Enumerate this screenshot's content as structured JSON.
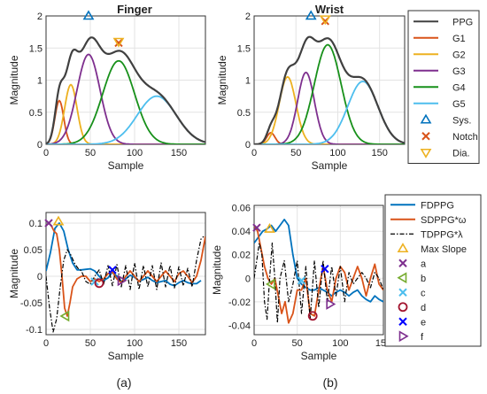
{
  "captions": [
    "(a)",
    "(b)"
  ],
  "colors": {
    "PPG": "#404040",
    "G1": "#d95319",
    "G2": "#edb120",
    "G3": "#7e2f8e",
    "G4": "#17901a",
    "G5": "#4dbeee",
    "FDPPG": "#0072bd",
    "SDPPG": "#d95319",
    "TDPPG": "#000000",
    "maxslope": "#edb120",
    "a": "#7e2f8e",
    "b": "#77ac30",
    "c": "#4dbeee",
    "d": "#a2142f",
    "e": "#0000ff",
    "f": "#7e2f8e",
    "sys": "#0072bd",
    "notch": "#d95319",
    "dia": "#edb120"
  },
  "legends": {
    "top": [
      {
        "key": "PPG",
        "label": "PPG",
        "kind": "line"
      },
      {
        "key": "G1",
        "label": "G1",
        "kind": "line"
      },
      {
        "key": "G2",
        "label": "G2",
        "kind": "line"
      },
      {
        "key": "G3",
        "label": "G3",
        "kind": "line"
      },
      {
        "key": "G4",
        "label": "G4",
        "kind": "line"
      },
      {
        "key": "G5",
        "label": "G5",
        "kind": "line"
      },
      {
        "key": "sys",
        "label": "Sys.",
        "kind": "tri-up"
      },
      {
        "key": "notch",
        "label": "Notch",
        "kind": "x"
      },
      {
        "key": "dia",
        "label": "Dia.",
        "kind": "tri-down"
      }
    ],
    "bottom": [
      {
        "key": "FDPPG",
        "label": "FDPPG",
        "kind": "line"
      },
      {
        "key": "SDPPG",
        "label": "SDPPG*ω",
        "kind": "line"
      },
      {
        "key": "TDPPG",
        "label": "TDPPG*λ",
        "kind": "dashdot"
      },
      {
        "key": "maxslope",
        "label": "Max Slope",
        "kind": "tri-up"
      },
      {
        "key": "a",
        "label": "a",
        "kind": "x"
      },
      {
        "key": "b",
        "label": "b",
        "kind": "tri-left"
      },
      {
        "key": "c",
        "label": "c",
        "kind": "x"
      },
      {
        "key": "d",
        "label": "d",
        "kind": "circle"
      },
      {
        "key": "e",
        "label": "e",
        "kind": "x"
      },
      {
        "key": "f",
        "label": "f",
        "kind": "tri-right"
      }
    ]
  },
  "chart_data": [
    {
      "id": "finger-top",
      "type": "line",
      "title": "Finger",
      "xlabel": "Sample",
      "ylabel": "Magnitude",
      "xlim": [
        0,
        180
      ],
      "ylim": [
        0,
        2
      ],
      "xticks": [
        0,
        50,
        100,
        150
      ],
      "yticks": [
        0,
        0.5,
        1,
        1.5,
        2
      ],
      "ytick_labels": [
        "0",
        "0.5",
        "1",
        "1.5",
        "2"
      ],
      "grid": true,
      "gaussians": [
        {
          "name": "G1",
          "amp": 0.68,
          "mu": 15,
          "sigma": 5
        },
        {
          "name": "G2",
          "amp": 0.93,
          "mu": 28,
          "sigma": 7
        },
        {
          "name": "G3",
          "amp": 1.4,
          "mu": 48,
          "sigma": 13
        },
        {
          "name": "G4",
          "amp": 1.3,
          "mu": 82,
          "sigma": 18
        },
        {
          "name": "G5",
          "amp": 0.75,
          "mu": 125,
          "sigma": 22
        }
      ],
      "markers": [
        {
          "key": "sys",
          "kind": "tri-up",
          "x": 48,
          "y": 2.0
        },
        {
          "key": "notch",
          "kind": "x",
          "x": 82,
          "y": 1.58
        },
        {
          "key": "dia",
          "kind": "tri-down",
          "x": 82,
          "y": 1.6
        }
      ]
    },
    {
      "id": "wrist-top",
      "type": "line",
      "title": "Wrist",
      "xlabel": "Sample",
      "ylabel": "Magnitude",
      "xlim": [
        0,
        180
      ],
      "ylim": [
        0,
        2
      ],
      "xticks": [
        0,
        50,
        100,
        150
      ],
      "yticks": [
        0,
        0.5,
        1,
        1.5,
        2
      ],
      "ytick_labels": [
        "0",
        "0.5",
        "1",
        "1.5",
        "2"
      ],
      "grid": true,
      "gaussians": [
        {
          "name": "G1",
          "amp": 0.18,
          "mu": 20,
          "sigma": 5
        },
        {
          "name": "G2",
          "amp": 1.05,
          "mu": 40,
          "sigma": 10
        },
        {
          "name": "G3",
          "amp": 1.12,
          "mu": 62,
          "sigma": 10
        },
        {
          "name": "G4",
          "amp": 1.55,
          "mu": 88,
          "sigma": 16
        },
        {
          "name": "G5",
          "amp": 0.98,
          "mu": 130,
          "sigma": 18
        }
      ],
      "markers": [
        {
          "key": "sys",
          "kind": "tri-up",
          "x": 68,
          "y": 2.0
        },
        {
          "key": "notch",
          "kind": "x",
          "x": 85,
          "y": 1.92
        },
        {
          "key": "dia",
          "kind": "tri-down",
          "x": 85,
          "y": 1.95
        }
      ]
    },
    {
      "id": "finger-bottom",
      "type": "line",
      "xlabel": "Sample",
      "ylabel": "Magnitude",
      "xlim": [
        0,
        180
      ],
      "ylim": [
        -0.11,
        0.12
      ],
      "xticks": [
        0,
        50,
        100,
        150
      ],
      "yticks": [
        -0.1,
        -0.05,
        0,
        0.05,
        0.1
      ],
      "ytick_labels": [
        "-0.1",
        "-0.05",
        "0",
        "0.05",
        "0.1"
      ],
      "grid": true,
      "series": [
        {
          "key": "FDPPG",
          "x": [
            0,
            5,
            10,
            15,
            20,
            25,
            30,
            35,
            40,
            45,
            50,
            55,
            60,
            65,
            70,
            75,
            80,
            85,
            90,
            95,
            100,
            105,
            110,
            115,
            120,
            125,
            130,
            135,
            140,
            145,
            150,
            155,
            160,
            165,
            170,
            175
          ],
          "y": [
            0.01,
            0.045,
            0.09,
            0.1,
            0.085,
            0.05,
            0.025,
            0.012,
            0.012,
            0.013,
            0.014,
            0.01,
            0.0,
            -0.008,
            -0.003,
            0.008,
            0.0,
            -0.01,
            -0.005,
            0.002,
            -0.002,
            -0.009,
            -0.006,
            -0.002,
            -0.008,
            -0.012,
            -0.01,
            -0.008,
            -0.015,
            -0.018,
            -0.012,
            -0.008,
            -0.012,
            -0.014,
            -0.014,
            -0.008
          ]
        },
        {
          "key": "SDPPG",
          "x": [
            0,
            3,
            6,
            9,
            12,
            15,
            18,
            21,
            24,
            27,
            30,
            35,
            40,
            45,
            50,
            55,
            60,
            65,
            70,
            75,
            80,
            85,
            90,
            95,
            100,
            105,
            110,
            115,
            120,
            125,
            130,
            135,
            140,
            145,
            150,
            155,
            160,
            165,
            170,
            175,
            180
          ],
          "y": [
            0.095,
            0.1,
            0.095,
            0.085,
            0.08,
            0.05,
            0.0,
            -0.06,
            -0.075,
            -0.05,
            -0.02,
            -0.005,
            0.0,
            0.0,
            -0.01,
            -0.005,
            -0.01,
            -0.005,
            0.005,
            0.008,
            -0.005,
            -0.012,
            0.0,
            0.01,
            0.0,
            -0.01,
            0.0,
            0.01,
            0.0,
            -0.01,
            0.0,
            0.01,
            0.0,
            -0.01,
            0.005,
            0.01,
            0.0,
            -0.012,
            0.0,
            0.03,
            0.075
          ]
        },
        {
          "key": "TDPPG",
          "x": [
            0,
            4,
            8,
            12,
            16,
            20,
            24,
            28,
            32,
            36,
            40,
            45,
            50,
            55,
            60,
            65,
            70,
            75,
            80,
            85,
            90,
            95,
            100,
            105,
            110,
            115,
            120,
            125,
            130,
            135,
            140,
            145,
            150,
            155,
            160,
            165,
            170,
            175,
            178
          ],
          "y": [
            0.0,
            -0.06,
            -0.105,
            -0.08,
            -0.02,
            0.03,
            0.05,
            0.04,
            0.025,
            0.015,
            0.01,
            -0.01,
            -0.015,
            0.0,
            0.012,
            -0.015,
            0.02,
            -0.018,
            0.022,
            -0.02,
            0.02,
            -0.025,
            0.025,
            -0.025,
            0.02,
            -0.02,
            0.02,
            -0.025,
            0.025,
            -0.02,
            0.02,
            -0.022,
            0.018,
            -0.018,
            0.015,
            -0.02,
            0.03,
            0.07,
            0.075
          ]
        }
      ],
      "markers": [
        {
          "key": "maxslope",
          "kind": "tri-up",
          "x": 14,
          "y": 0.103
        },
        {
          "key": "a",
          "kind": "x",
          "x": 3,
          "y": 0.1
        },
        {
          "key": "b",
          "kind": "tri-left",
          "x": 22,
          "y": -0.075
        },
        {
          "key": "c",
          "kind": "x",
          "x": 55,
          "y": -0.01
        },
        {
          "key": "d",
          "kind": "circle",
          "x": 60,
          "y": -0.013
        },
        {
          "key": "e",
          "kind": "x",
          "x": 75,
          "y": 0.012
        },
        {
          "key": "f",
          "kind": "tri-right",
          "x": 85,
          "y": -0.008
        }
      ]
    },
    {
      "id": "wrist-bottom",
      "type": "line",
      "xlabel": "Sample",
      "ylabel": "Magnitude",
      "xlim": [
        0,
        150
      ],
      "ylim": [
        -0.048,
        0.062
      ],
      "xticks": [
        0,
        50,
        100,
        150
      ],
      "yticks": [
        -0.04,
        -0.02,
        0,
        0.02,
        0.04,
        0.06
      ],
      "ytick_labels": [
        "-0.04",
        "-0.02",
        "0",
        "0.02",
        "0.04",
        "0.06"
      ],
      "grid": true,
      "series": [
        {
          "key": "FDPPG",
          "x": [
            0,
            5,
            10,
            15,
            20,
            25,
            30,
            35,
            40,
            45,
            50,
            55,
            60,
            65,
            70,
            75,
            80,
            85,
            90,
            95,
            100,
            105,
            110,
            115,
            120,
            125,
            130,
            135,
            140,
            145,
            150
          ],
          "y": [
            0.03,
            0.035,
            0.04,
            0.042,
            0.045,
            0.04,
            0.045,
            0.05,
            0.045,
            0.02,
            0.0,
            -0.005,
            -0.008,
            -0.01,
            -0.01,
            -0.008,
            -0.01,
            -0.012,
            -0.015,
            -0.012,
            -0.01,
            -0.012,
            -0.015,
            -0.012,
            -0.01,
            -0.015,
            -0.018,
            -0.02,
            -0.015,
            -0.018,
            -0.02
          ]
        },
        {
          "key": "SDPPG",
          "x": [
            0,
            4,
            8,
            12,
            16,
            20,
            24,
            28,
            32,
            36,
            40,
            45,
            50,
            55,
            60,
            65,
            70,
            75,
            80,
            85,
            90,
            95,
            100,
            105,
            110,
            115,
            120,
            125,
            130,
            135,
            140,
            145,
            150
          ],
          "y": [
            0.045,
            0.04,
            0.025,
            0.01,
            0.0,
            -0.005,
            0.0,
            -0.015,
            -0.03,
            -0.02,
            -0.038,
            -0.03,
            -0.01,
            -0.01,
            0.0,
            -0.03,
            -0.032,
            -0.01,
            0.01,
            -0.01,
            -0.02,
            0.0,
            0.01,
            0.005,
            -0.01,
            0.0,
            0.01,
            0.0,
            -0.015,
            0.0,
            0.012,
            -0.005,
            -0.01
          ]
        },
        {
          "key": "TDPPG",
          "x": [
            0,
            3,
            6,
            9,
            12,
            15,
            18,
            21,
            24,
            27,
            30,
            35,
            40,
            45,
            50,
            55,
            60,
            65,
            70,
            75,
            80,
            85,
            90,
            95,
            100,
            105,
            110,
            115,
            120,
            125,
            130,
            135,
            140,
            145,
            150
          ],
          "y": [
            0.0,
            0.015,
            0.03,
            0.02,
            -0.02,
            -0.035,
            0.0,
            0.03,
            0.0,
            -0.038,
            0.0,
            0.015,
            -0.02,
            -0.005,
            0.015,
            -0.03,
            0.01,
            -0.035,
            0.015,
            -0.025,
            0.015,
            -0.02,
            0.01,
            -0.015,
            0.01,
            -0.02,
            0.005,
            -0.005,
            0.0,
            0.005,
            0.0,
            -0.008,
            0.005,
            0.0,
            -0.01
          ]
        }
      ],
      "markers": [
        {
          "key": "a",
          "kind": "x",
          "x": 3,
          "y": 0.043
        },
        {
          "key": "maxslope",
          "kind": "tri-up",
          "x": 18,
          "y": 0.042
        },
        {
          "key": "b",
          "kind": "tri-left",
          "x": 20,
          "y": -0.005
        },
        {
          "key": "c",
          "kind": "x",
          "x": 55,
          "y": -0.002
        },
        {
          "key": "d",
          "kind": "circle",
          "x": 68,
          "y": -0.032
        },
        {
          "key": "e",
          "kind": "x",
          "x": 82,
          "y": 0.008
        },
        {
          "key": "f",
          "kind": "tri-right",
          "x": 88,
          "y": -0.022
        }
      ]
    }
  ]
}
